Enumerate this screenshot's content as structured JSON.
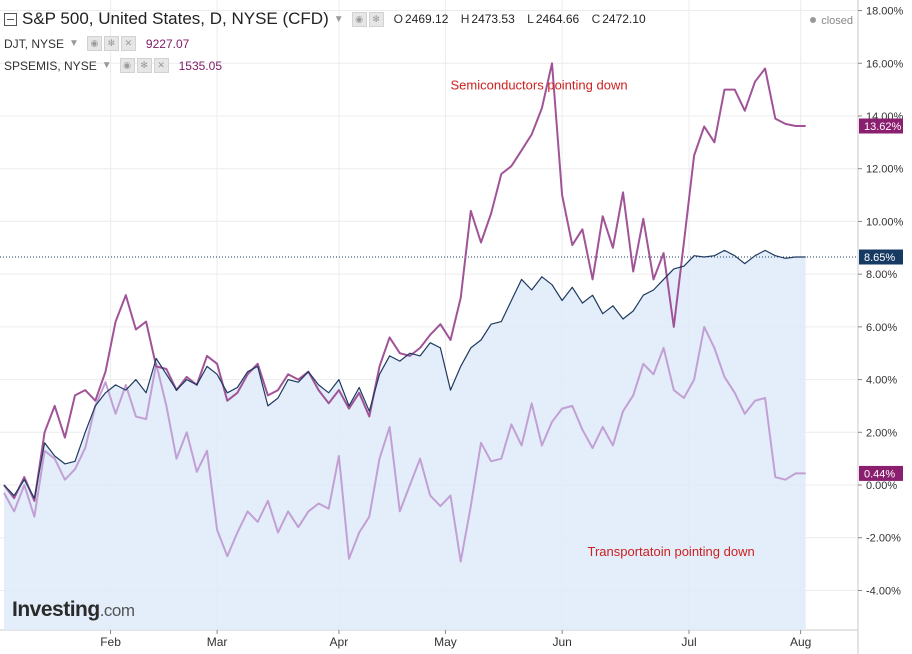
{
  "header": {
    "symbol": "S&P 500, United States, D, NYSE (CFD)",
    "ohlc": [
      {
        "k": "O",
        "v": "2469.12"
      },
      {
        "k": "H",
        "v": "2473.53"
      },
      {
        "k": "L",
        "v": "2464.66"
      },
      {
        "k": "C",
        "v": "2472.10"
      }
    ],
    "status": "closed"
  },
  "legend": [
    {
      "symbol": "DJT, NYSE",
      "value": "9227.07"
    },
    {
      "symbol": "SPSEMIS, NYSE",
      "value": "1535.05"
    }
  ],
  "watermark": {
    "brand": "Investing",
    "domain": ".com"
  },
  "chart_data": {
    "type": "line",
    "title": "S&P 500, United States, D, NYSE (CFD)",
    "x_ticks": [
      {
        "label": "Feb",
        "x": 21
      },
      {
        "label": "Mar",
        "x": 42
      },
      {
        "label": "Apr",
        "x": 66
      },
      {
        "label": "May",
        "x": 87
      },
      {
        "label": "Jun",
        "x": 110
      },
      {
        "label": "Jul",
        "x": 135
      },
      {
        "label": "Aug",
        "x": 157
      }
    ],
    "xlim": [
      0,
      162
    ],
    "y_ticks": [
      "18.00%",
      "16.00%",
      "14.00%",
      "12.00%",
      "10.00%",
      "8.00%",
      "6.00%",
      "4.00%",
      "2.00%",
      "0.00%",
      "-2.00%",
      "-4.00%"
    ],
    "ylim": [
      -5.5,
      18.4
    ],
    "annotations": [
      {
        "text": "Semiconductors pointing down",
        "x": 88,
        "y": 15.0,
        "color": "#cc1f1f"
      },
      {
        "text": "Transportatoin pointing down",
        "x": 115,
        "y": -2.7,
        "color": "#cc1f1f"
      }
    ],
    "series": [
      {
        "color": "#1e3a5f",
        "area": true,
        "last_label": "8.65%",
        "last_value": 8.65,
        "x": [
          0,
          2,
          4,
          6,
          8,
          10,
          12,
          14,
          16,
          18,
          20,
          22,
          24,
          26,
          28,
          30,
          32,
          34,
          36,
          38,
          40,
          42,
          44,
          46,
          48,
          50,
          52,
          54,
          56,
          58,
          60,
          62,
          64,
          66,
          68,
          70,
          72,
          74,
          76,
          78,
          80,
          82,
          84,
          86,
          88,
          90,
          92,
          94,
          96,
          98,
          100,
          102,
          104,
          106,
          108,
          110,
          112,
          114,
          116,
          118,
          120,
          122,
          124,
          126,
          128,
          130,
          132,
          134,
          136,
          138,
          140,
          142,
          144,
          146,
          148,
          150,
          152,
          154,
          156,
          158
        ],
        "values": [
          0.0,
          -0.4,
          0.2,
          -0.5,
          1.6,
          1.1,
          0.8,
          0.9,
          2.0,
          3.0,
          3.5,
          3.8,
          3.6,
          4.0,
          3.5,
          4.8,
          4.2,
          3.6,
          4.0,
          3.8,
          4.5,
          4.2,
          3.5,
          3.7,
          4.3,
          4.5,
          3.0,
          3.3,
          4.0,
          3.9,
          4.3,
          3.8,
          3.5,
          4.0,
          3.0,
          3.7,
          2.8,
          4.2,
          4.9,
          4.7,
          5.0,
          4.9,
          5.4,
          5.2,
          3.6,
          4.5,
          5.2,
          5.5,
          6.1,
          6.2,
          7.0,
          7.8,
          7.4,
          7.9,
          7.6,
          7.0,
          7.5,
          6.9,
          7.2,
          6.5,
          6.8,
          6.3,
          6.6,
          7.2,
          7.4,
          7.8,
          8.2,
          8.3,
          8.7,
          8.65,
          8.7,
          8.9,
          8.7,
          8.4,
          8.7,
          8.9,
          8.7,
          8.6,
          8.65,
          8.65
        ]
      },
      {
        "color": "#a05497",
        "area": false,
        "last_label": "13.62%",
        "last_value": 13.62,
        "x": [
          0,
          2,
          4,
          6,
          8,
          10,
          12,
          14,
          16,
          18,
          20,
          22,
          24,
          26,
          28,
          30,
          32,
          34,
          36,
          38,
          40,
          42,
          44,
          46,
          48,
          50,
          52,
          54,
          56,
          58,
          60,
          62,
          64,
          66,
          68,
          70,
          72,
          74,
          76,
          78,
          80,
          82,
          84,
          86,
          88,
          90,
          92,
          94,
          96,
          98,
          100,
          102,
          104,
          106,
          108,
          110,
          112,
          114,
          116,
          118,
          120,
          122,
          124,
          126,
          128,
          130,
          132,
          134,
          136,
          138,
          140,
          142,
          144,
          146,
          148,
          150,
          152,
          154,
          156,
          158
        ],
        "values": [
          0.0,
          -0.5,
          0.3,
          -0.6,
          2.0,
          3.0,
          1.8,
          3.4,
          3.6,
          3.2,
          4.3,
          6.2,
          7.2,
          5.9,
          6.2,
          4.5,
          4.4,
          3.6,
          4.1,
          3.8,
          4.9,
          4.6,
          3.2,
          3.5,
          4.2,
          4.6,
          3.4,
          3.6,
          4.2,
          4.0,
          4.3,
          3.6,
          3.1,
          3.6,
          2.9,
          3.5,
          2.6,
          4.5,
          5.6,
          5.0,
          4.9,
          5.2,
          5.7,
          6.1,
          5.5,
          7.1,
          10.4,
          9.2,
          10.3,
          11.8,
          12.1,
          12.7,
          13.3,
          14.3,
          16.0,
          11.0,
          9.1,
          9.7,
          7.8,
          10.2,
          9.0,
          11.1,
          8.1,
          10.1,
          7.8,
          8.8,
          6.0,
          9.2,
          12.5,
          13.6,
          13.0,
          15.0,
          15.0,
          14.2,
          15.3,
          15.8,
          13.9,
          13.7,
          13.62,
          13.62
        ]
      },
      {
        "color": "#c2a0d4",
        "area": false,
        "last_label": "0.44%",
        "last_value": 0.44,
        "x": [
          0,
          2,
          4,
          6,
          8,
          10,
          12,
          14,
          16,
          18,
          20,
          22,
          24,
          26,
          28,
          30,
          32,
          34,
          36,
          38,
          40,
          42,
          44,
          46,
          48,
          50,
          52,
          54,
          56,
          58,
          60,
          62,
          64,
          66,
          68,
          70,
          72,
          74,
          76,
          78,
          80,
          82,
          84,
          86,
          88,
          90,
          92,
          94,
          96,
          98,
          100,
          102,
          104,
          106,
          108,
          110,
          112,
          114,
          116,
          118,
          120,
          122,
          124,
          126,
          128,
          130,
          132,
          134,
          136,
          138,
          140,
          142,
          144,
          146,
          148,
          150,
          152,
          154,
          156,
          158
        ],
        "values": [
          -0.3,
          -1.0,
          0.0,
          -1.2,
          1.3,
          1.0,
          0.2,
          0.6,
          1.4,
          3.0,
          3.9,
          2.7,
          3.8,
          2.6,
          2.5,
          4.6,
          3.0,
          1.0,
          2.0,
          0.5,
          1.3,
          -1.7,
          -2.7,
          -1.8,
          -1.0,
          -1.4,
          -0.6,
          -1.8,
          -1.0,
          -1.6,
          -1.0,
          -0.7,
          -0.9,
          1.1,
          -2.8,
          -1.8,
          -1.2,
          1.0,
          2.2,
          -1.0,
          0.0,
          1.0,
          -0.4,
          -0.8,
          -0.4,
          -2.9,
          -0.8,
          1.6,
          0.9,
          1.0,
          2.3,
          1.5,
          3.1,
          1.5,
          2.4,
          2.9,
          3.0,
          2.1,
          1.4,
          2.2,
          1.5,
          2.8,
          3.4,
          4.6,
          4.2,
          5.2,
          3.6,
          3.3,
          4.0,
          6.0,
          5.2,
          4.1,
          3.5,
          2.7,
          3.2,
          3.3,
          0.3,
          0.2,
          0.44,
          0.44
        ]
      }
    ],
    "reference_line": {
      "value": 8.65,
      "color": "#1e3a5f",
      "style": "dotted"
    }
  }
}
